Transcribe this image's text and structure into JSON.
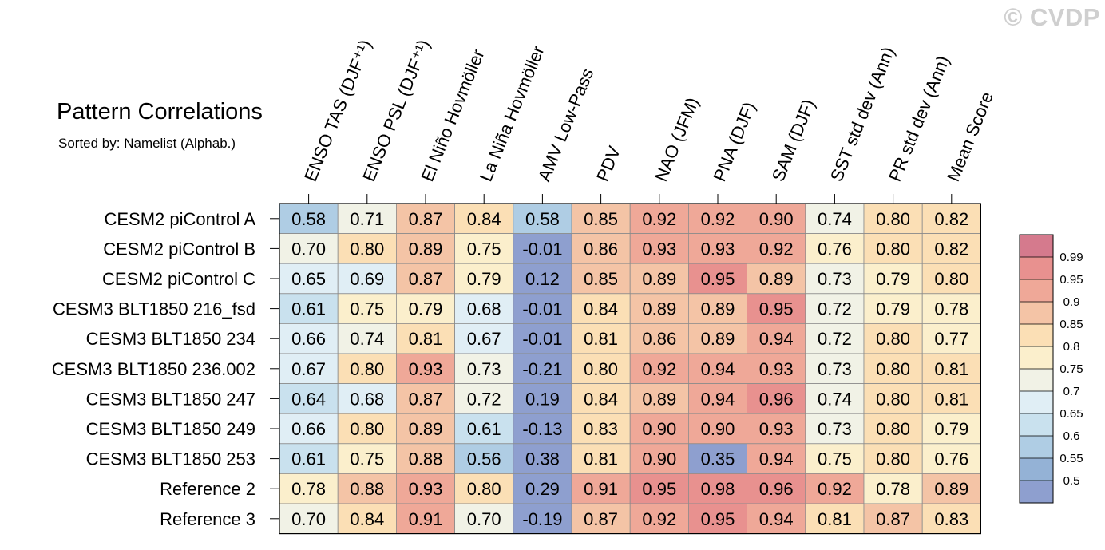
{
  "watermark": "© CVDP",
  "chart_data": {
    "type": "heatmap",
    "title": "Pattern Correlations",
    "subtitle": "Sorted by: Namelist (Alphab.)",
    "columns": [
      "ENSO TAS (DJF⁺¹)",
      "ENSO PSL (DJF⁺¹)",
      "El Niño Hovmöller",
      "La Niña Hovmöller",
      "AMV Low-Pass",
      "PDV",
      "NAO (JFM)",
      "PNA (DJF)",
      "SAM (DJF)",
      "SST std dev (Ann)",
      "PR std dev (Ann)",
      "Mean Score"
    ],
    "rows": [
      "CESM2 piControl A",
      "CESM2 piControl B",
      "CESM2 piControl C",
      "CESM3 BLT1850 216_fsd",
      "CESM3 BLT1850 234",
      "CESM3 BLT1850 236.002",
      "CESM3 BLT1850 247",
      "CESM3 BLT1850 249",
      "CESM3 BLT1850 253",
      "Reference 2",
      "Reference 3"
    ],
    "values": [
      [
        "0.58",
        "0.71",
        "0.87",
        "0.84",
        "0.58",
        "0.85",
        "0.92",
        "0.92",
        "0.90",
        "0.74",
        "0.80",
        "0.82"
      ],
      [
        "0.70",
        "0.80",
        "0.89",
        "0.75",
        "-0.01",
        "0.86",
        "0.93",
        "0.93",
        "0.92",
        "0.76",
        "0.80",
        "0.82"
      ],
      [
        "0.65",
        "0.69",
        "0.87",
        "0.79",
        "0.12",
        "0.85",
        "0.89",
        "0.95",
        "0.89",
        "0.73",
        "0.79",
        "0.80"
      ],
      [
        "0.61",
        "0.75",
        "0.79",
        "0.68",
        "-0.01",
        "0.84",
        "0.89",
        "0.89",
        "0.95",
        "0.72",
        "0.79",
        "0.78"
      ],
      [
        "0.66",
        "0.74",
        "0.81",
        "0.67",
        "-0.01",
        "0.81",
        "0.86",
        "0.89",
        "0.94",
        "0.72",
        "0.80",
        "0.77"
      ],
      [
        "0.67",
        "0.80",
        "0.93",
        "0.73",
        "-0.21",
        "0.80",
        "0.92",
        "0.94",
        "0.93",
        "0.73",
        "0.80",
        "0.81"
      ],
      [
        "0.64",
        "0.68",
        "0.87",
        "0.72",
        "0.19",
        "0.84",
        "0.89",
        "0.94",
        "0.96",
        "0.74",
        "0.80",
        "0.81"
      ],
      [
        "0.66",
        "0.80",
        "0.89",
        "0.61",
        "-0.13",
        "0.83",
        "0.90",
        "0.90",
        "0.93",
        "0.73",
        "0.80",
        "0.79"
      ],
      [
        "0.61",
        "0.75",
        "0.88",
        "0.56",
        "0.38",
        "0.81",
        "0.90",
        "0.35",
        "0.94",
        "0.75",
        "0.80",
        "0.76"
      ],
      [
        "0.78",
        "0.88",
        "0.93",
        "0.80",
        "0.29",
        "0.91",
        "0.95",
        "0.98",
        "0.96",
        "0.92",
        "0.78",
        "0.89"
      ],
      [
        "0.70",
        "0.84",
        "0.91",
        "0.70",
        "-0.19",
        "0.87",
        "0.92",
        "0.95",
        "0.94",
        "0.81",
        "0.87",
        "0.83"
      ]
    ],
    "colorbar": {
      "levels": [
        "0.99",
        "0.95",
        "0.9",
        "0.85",
        "0.8",
        "0.75",
        "0.7",
        "0.65",
        "0.6",
        "0.55",
        "0.5"
      ],
      "colors": [
        "#d57a8d",
        "#e8918f",
        "#efa898",
        "#f4c4a6",
        "#fbdfb5",
        "#fbefcc",
        "#f1f2e6",
        "#e0eef5",
        "#c9e1ee",
        "#afcde4",
        "#94b2d6",
        "#8e9fcf"
      ]
    },
    "legend_position": "right"
  }
}
